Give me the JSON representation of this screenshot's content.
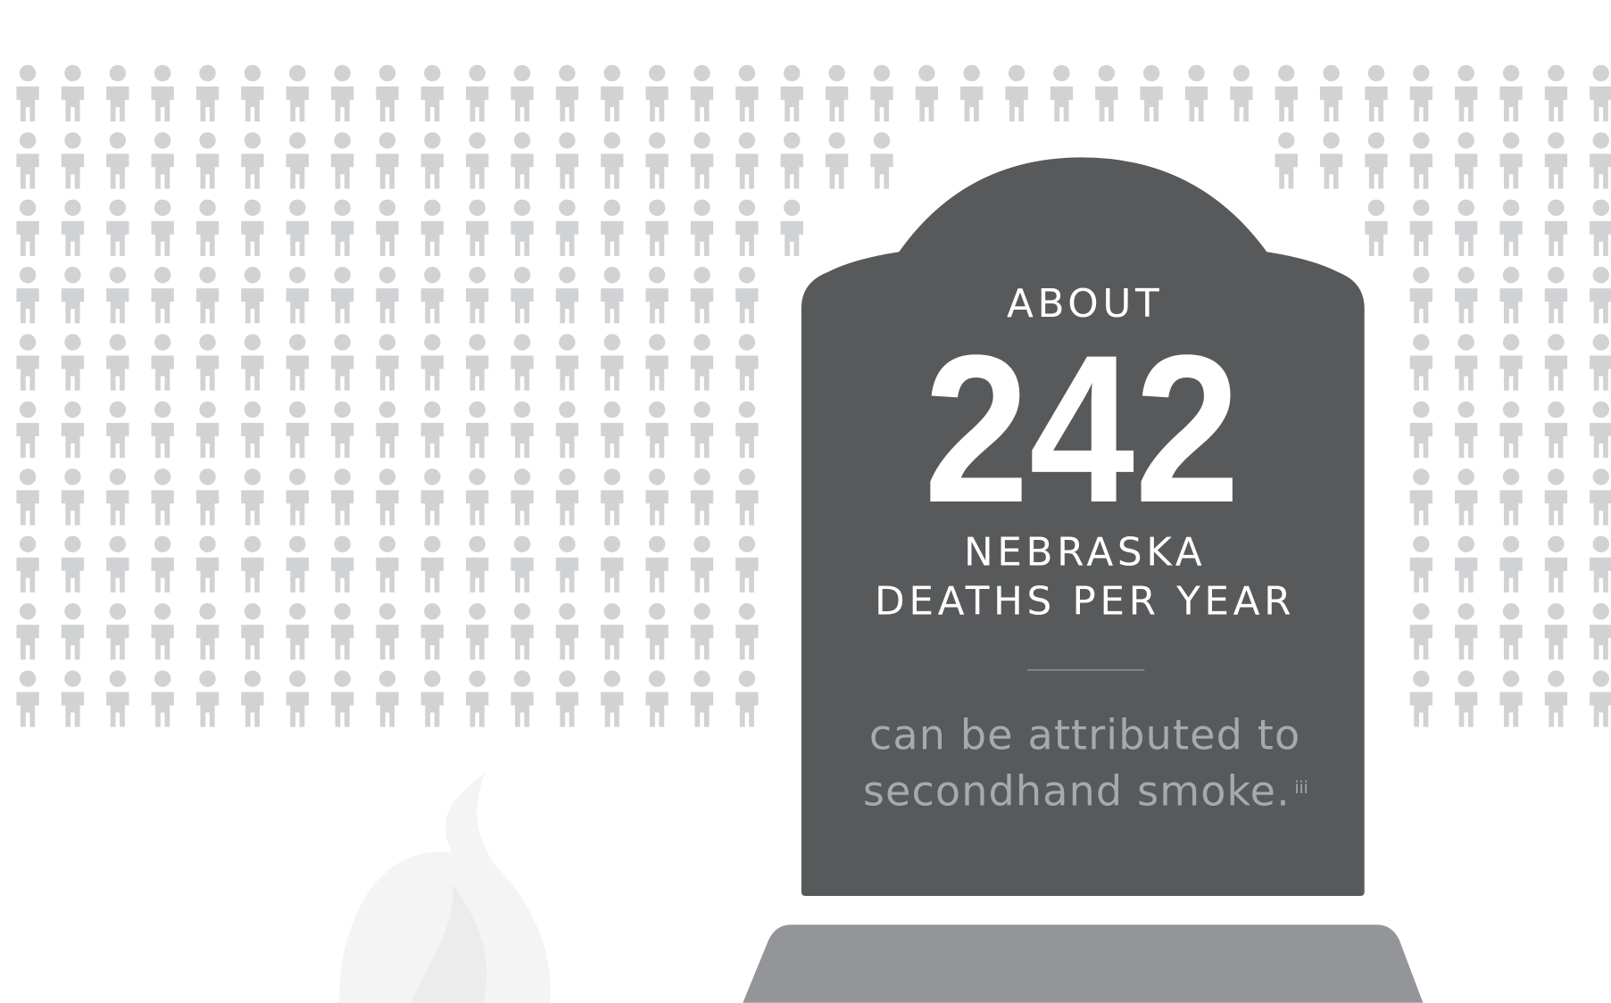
{
  "headline": {
    "prefix": "ABOUT",
    "number": "242",
    "line1": "NEBRASKA",
    "line2": "DEATHS PER YEAR"
  },
  "caption": {
    "line1": "can be attributed to",
    "line2": "secondhand smoke.",
    "footnote": "iii"
  }
}
